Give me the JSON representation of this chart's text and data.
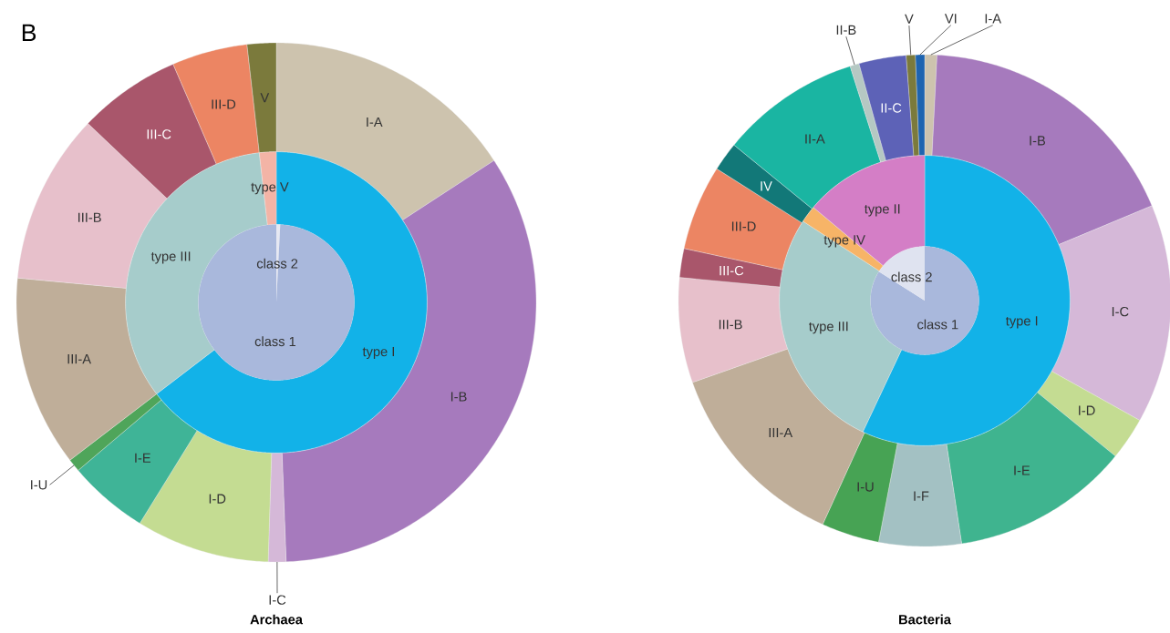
{
  "chart_data": [
    {
      "type": "donut",
      "title": "Archaea",
      "annotations": [
        "B"
      ],
      "categories": [
        "I-A",
        "I-B",
        "I-C",
        "I-D",
        "I-E",
        "I-U",
        "III-A",
        "III-B",
        "III-C",
        "III-D",
        "V"
      ],
      "values": [
        15.8,
        33.6,
        1.1,
        8.3,
        5.0,
        0.8,
        11.9,
        10.6,
        6.4,
        4.7,
        1.8
      ],
      "colors": [
        "#cdc3ae",
        "#a67abd",
        "#d5b8d8",
        "#c4dc92",
        "#3fb497",
        "#4fa55a",
        "#bfae99",
        "#e7c0cb",
        "#a9566b",
        "#ec8563",
        "#7b7a3c"
      ]
    },
    {
      "type": "donut",
      "categories": [
        "type I",
        "type III",
        "type V"
      ],
      "values": [
        64.6,
        33.6,
        1.8
      ],
      "colors": [
        "#12b2e8",
        "#a6cccb",
        "#f3b4a6"
      ]
    },
    {
      "type": "pie",
      "categories": [
        "class 2",
        "class 1"
      ],
      "values": [
        0.8,
        99.2
      ],
      "colors": [
        "#e6e8f2",
        "#a9b8dc"
      ]
    },
    {
      "type": "donut",
      "title": "Bacteria",
      "categories": [
        "I-A",
        "I-B",
        "I-C",
        "I-D",
        "I-E",
        "I-F",
        "I-U",
        "III-A",
        "III-B",
        "III-C",
        "III-D",
        "IV",
        "II-A",
        "II-B",
        "II-C",
        "V",
        "VI"
      ],
      "values": [
        0.8,
        17.9,
        14.4,
        2.8,
        11.7,
        5.4,
        3.8,
        12.8,
        6.9,
        1.9,
        5.6,
        1.9,
        9.2,
        0.6,
        3.1,
        0.6,
        0.6
      ],
      "colors": [
        "#cdc3ae",
        "#a67abd",
        "#d5b8d8",
        "#c4dc92",
        "#3fb48f",
        "#a3c1c3",
        "#47a354",
        "#bfae99",
        "#e7c0cb",
        "#a9566b",
        "#ec8563",
        "#127878",
        "#1ab5a2",
        "#b5c8c3",
        "#5d62b7",
        "#7b7a3c",
        "#1e64b0"
      ]
    },
    {
      "type": "donut",
      "categories": [
        "type I",
        "type III",
        "type IV",
        "type II"
      ],
      "values": [
        57.0,
        27.2,
        1.9,
        13.9
      ],
      "colors": [
        "#12b2e8",
        "#a6cccb",
        "#f7b467",
        "#d47ec6"
      ]
    },
    {
      "type": "pie",
      "categories": [
        "class 1",
        "class 2"
      ],
      "values": [
        84,
        16
      ],
      "colors": [
        "#a9b8dc",
        "#dfe3f0"
      ]
    }
  ]
}
